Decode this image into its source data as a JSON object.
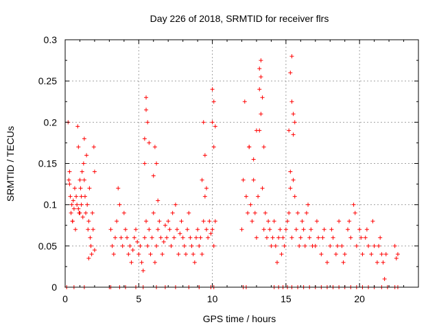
{
  "chart_data": {
    "type": "scatter",
    "title": "Day 226 of 2018, SRMTID for receiver flrs",
    "xlabel": "GPS time / hours",
    "ylabel": "SRMTID / TECUs",
    "xlim": [
      0,
      24
    ],
    "ylim": [
      0,
      0.3
    ],
    "xticks": [
      0,
      5,
      10,
      15,
      20
    ],
    "yticks": [
      0,
      0.05,
      0.1,
      0.15,
      0.2,
      0.25,
      0.3
    ],
    "xtick_labels": [
      "0",
      "5",
      "10",
      "15",
      "20"
    ],
    "ytick_labels": [
      "0",
      "0.05",
      "0.1",
      "0.15",
      "0.2",
      "0.25",
      "0.3"
    ],
    "grid": true,
    "marker": "+",
    "color": "#ff0000",
    "series": [
      {
        "name": "SRMTID",
        "x": [
          0.2,
          0.25,
          0.3,
          0.35,
          0.4,
          0.45,
          0.5,
          0.55,
          0.6,
          0.65,
          0.7,
          0.75,
          0.8,
          0.85,
          0.9,
          0.95,
          1.0,
          1.05,
          1.1,
          1.15,
          1.2,
          1.25,
          1.3,
          1.35,
          1.4,
          1.45,
          1.5,
          1.55,
          1.6,
          1.65,
          1.7,
          1.75,
          1.8,
          1.85,
          1.9,
          1.95,
          2.0,
          0.3,
          0.5,
          0.9,
          1.0,
          1.1,
          1.3,
          1.6,
          2.0,
          3.1,
          3.2,
          3.3,
          3.4,
          3.5,
          3.6,
          3.7,
          3.8,
          3.9,
          4.0,
          4.1,
          4.2,
          4.3,
          4.4,
          4.5,
          4.6,
          4.7,
          4.8,
          4.9,
          5.0,
          5.1,
          5.2,
          5.3,
          5.4,
          5.5,
          5.6,
          5.7,
          5.8,
          5.9,
          6.0,
          6.1,
          6.2,
          6.3,
          6.4,
          6.5,
          6.6,
          6.7,
          6.8,
          6.9,
          7.0,
          7.1,
          7.2,
          7.3,
          7.4,
          7.5,
          7.6,
          7.7,
          7.8,
          7.9,
          8.0,
          8.1,
          8.2,
          8.3,
          8.4,
          8.5,
          8.6,
          8.7,
          8.8,
          8.9,
          9.0,
          9.1,
          9.2,
          9.3,
          9.4,
          9.5,
          9.6,
          9.7,
          9.8,
          9.9,
          10.0,
          10.1,
          10.2,
          5.4,
          5.5,
          5.5,
          5.6,
          5.4,
          5.7,
          6.0,
          6.1,
          6.3,
          6.2,
          9.4,
          9.5,
          9.6,
          9.3,
          10.0,
          10.1,
          10.2,
          10.1,
          10.0,
          12.0,
          12.1,
          12.2,
          12.3,
          12.4,
          12.5,
          12.6,
          12.7,
          12.8,
          12.9,
          13.0,
          13.1,
          13.2,
          13.3,
          13.4,
          13.5,
          13.6,
          13.7,
          13.8,
          13.9,
          14.0,
          14.1,
          14.2,
          14.3,
          14.4,
          14.5,
          14.6,
          14.7,
          14.8,
          14.9,
          15.0,
          15.1,
          15.2,
          15.3,
          15.4,
          15.5,
          15.6,
          15.7,
          15.8,
          15.9,
          16.0,
          16.1,
          16.2,
          16.3,
          16.4,
          16.5,
          16.6,
          16.7,
          16.8,
          12.5,
          12.8,
          13.0,
          13.2,
          13.3,
          13.3,
          13.4,
          13.2,
          13.5,
          15.3,
          15.4,
          15.4,
          15.5,
          15.5,
          15.6,
          15.3,
          15.2,
          17.0,
          17.2,
          17.4,
          17.6,
          17.8,
          18.0,
          18.2,
          18.4,
          18.6,
          18.8,
          19.0,
          19.2,
          19.4,
          19.6,
          19.8,
          20.0,
          20.2,
          20.4,
          20.6,
          20.8,
          21.0,
          21.2,
          21.4,
          21.6,
          21.7,
          21.8,
          22.4,
          22.5,
          22.6,
          17.1,
          17.5,
          18.1,
          18.5,
          18.9,
          19.3,
          19.7,
          20.1,
          20.5,
          20.9,
          21.3,
          21.5,
          0.1,
          0.6,
          1.3,
          3.0,
          3.1,
          3.7,
          4.1,
          4.8,
          5.3,
          6.2,
          6.8,
          7.5,
          8.4,
          9.1,
          9.9,
          10.1,
          12.1,
          12.3,
          14.2,
          14.5,
          14.8,
          15.1,
          15.4,
          15.8,
          16.2,
          16.6,
          17.0,
          17.4,
          17.8,
          18.2,
          18.6,
          19.0,
          19.4,
          19.8,
          20.2,
          20.6,
          21.0,
          21.5,
          21.9,
          22.4,
          22.6
        ],
        "y": [
          0.2,
          0.13,
          0.14,
          0.11,
          0.09,
          0.1,
          0.08,
          0.105,
          0.095,
          0.12,
          0.07,
          0.11,
          0.1,
          0.195,
          0.17,
          0.09,
          0.13,
          0.12,
          0.1,
          0.14,
          0.085,
          0.15,
          0.18,
          0.11,
          0.09,
          0.16,
          0.1,
          0.07,
          0.08,
          0.12,
          0.06,
          0.05,
          0.04,
          0.09,
          0.07,
          0.17,
          0.14,
          0.125,
          0.08,
          0.095,
          0.09,
          0.11,
          0.13,
          0.035,
          0.045,
          0.07,
          0.05,
          0.04,
          0.06,
          0.08,
          0.12,
          0.1,
          0.06,
          0.05,
          0.09,
          0.07,
          0.06,
          0.04,
          0.05,
          0.03,
          0.045,
          0.06,
          0.07,
          0.055,
          0.04,
          0.05,
          0.03,
          0.02,
          0.06,
          0.08,
          0.05,
          0.07,
          0.04,
          0.06,
          0.09,
          0.03,
          0.05,
          0.07,
          0.08,
          0.06,
          0.04,
          0.055,
          0.075,
          0.06,
          0.08,
          0.07,
          0.05,
          0.09,
          0.06,
          0.1,
          0.07,
          0.04,
          0.065,
          0.08,
          0.06,
          0.05,
          0.04,
          0.07,
          0.09,
          0.06,
          0.05,
          0.04,
          0.03,
          0.06,
          0.07,
          0.05,
          0.06,
          0.04,
          0.08,
          0.11,
          0.07,
          0.06,
          0.08,
          0.065,
          0.07,
          0.05,
          0.08,
          0.18,
          0.23,
          0.215,
          0.2,
          0.15,
          0.175,
          0.135,
          0.17,
          0.105,
          0.15,
          0.2,
          0.16,
          0.12,
          0.13,
          0.24,
          0.225,
          0.195,
          0.17,
          0.2,
          0.07,
          0.13,
          0.225,
          0.11,
          0.09,
          0.17,
          0.1,
          0.08,
          0.13,
          0.09,
          0.06,
          0.11,
          0.19,
          0.255,
          0.12,
          0.07,
          0.09,
          0.06,
          0.08,
          0.07,
          0.05,
          0.06,
          0.08,
          0.05,
          0.03,
          0.06,
          0.07,
          0.04,
          0.06,
          0.05,
          0.07,
          0.08,
          0.09,
          0.12,
          0.06,
          0.13,
          0.11,
          0.07,
          0.09,
          0.05,
          0.06,
          0.08,
          0.07,
          0.05,
          0.09,
          0.1,
          0.06,
          0.07,
          0.05,
          0.17,
          0.155,
          0.19,
          0.265,
          0.21,
          0.275,
          0.23,
          0.24,
          0.17,
          0.26,
          0.28,
          0.225,
          0.21,
          0.185,
          0.2,
          0.14,
          0.19,
          0.05,
          0.06,
          0.04,
          0.07,
          0.03,
          0.05,
          0.06,
          0.04,
          0.08,
          0.05,
          0.04,
          0.07,
          0.06,
          0.1,
          0.05,
          0.07,
          0.04,
          0.06,
          0.05,
          0.04,
          0.05,
          0.03,
          0.06,
          0.03,
          0.01,
          0.04,
          0.05,
          0.035,
          0.04,
          0.08,
          0.06,
          0.07,
          0.05,
          0.03,
          0.08,
          0.09,
          0.06,
          0.07,
          0.08,
          0.05,
          0.04,
          0.0,
          0.0,
          0.0,
          0.0,
          0.0,
          0.0,
          0.0,
          0.0,
          0.0,
          0.0,
          0.0,
          0.0,
          0.0,
          0.0,
          0.0,
          0.0,
          0.0,
          0.0,
          0.0,
          0.0,
          0.0,
          0.0,
          0.0,
          0.0,
          0.0,
          0.0,
          0.0,
          0.0,
          0.0,
          0.0,
          0.0,
          0.0,
          0.0,
          0.0,
          0.0,
          0.0,
          0.0,
          0.0,
          0.0,
          0.0,
          0.0
        ]
      }
    ]
  }
}
